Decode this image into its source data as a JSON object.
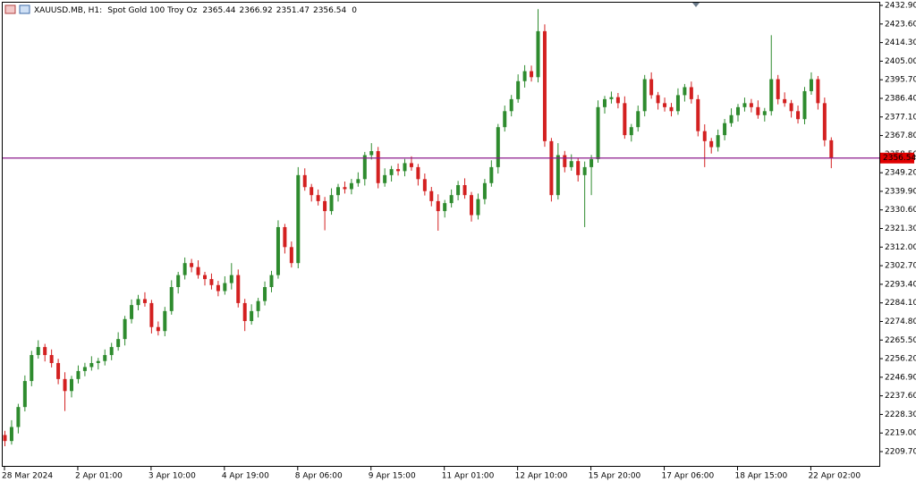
{
  "chart_data": {
    "type": "candlestick",
    "title": "XAUUSD.MB, H1:",
    "subtitle": "Spot Gold 100 Troy Oz",
    "info": "0",
    "up_color": "#2e8b2e",
    "down_color": "#d32020",
    "price_line_color": "#8b1a8b",
    "price_label_color": "#e00000",
    "categories": [
      "28 Mar 2024",
      null,
      null,
      null,
      null,
      null,
      null,
      null,
      null,
      null,
      null,
      "2 Apr 01:00",
      null,
      null,
      null,
      null,
      null,
      null,
      null,
      null,
      null,
      null,
      "3 Apr 10:00",
      null,
      null,
      null,
      null,
      null,
      null,
      null,
      null,
      null,
      null,
      "4 Apr 19:00",
      null,
      null,
      null,
      null,
      null,
      null,
      null,
      null,
      null,
      null,
      "8 Apr 06:00",
      null,
      null,
      null,
      null,
      null,
      null,
      null,
      null,
      null,
      null,
      "9 Apr 15:00",
      null,
      null,
      null,
      null,
      null,
      null,
      null,
      null,
      null,
      null,
      "11 Apr 01:00",
      null,
      null,
      null,
      null,
      null,
      null,
      null,
      null,
      null,
      null,
      "12 Apr 10:00",
      null,
      null,
      null,
      null,
      null,
      null,
      null,
      null,
      null,
      null,
      "15 Apr 20:00",
      null,
      null,
      null,
      null,
      null,
      null,
      null,
      null,
      null,
      null,
      "17 Apr 06:00",
      null,
      null,
      null,
      null,
      null,
      null,
      null,
      null,
      null,
      null,
      "18 Apr 15:00",
      null,
      null,
      null,
      null,
      null,
      null,
      null,
      null,
      null,
      null,
      "22 Apr 02:00",
      null,
      null,
      null
    ],
    "open": [
      2218,
      2215,
      2222,
      2232,
      2245,
      2258,
      2262,
      2258,
      2254,
      2246,
      2240,
      2246,
      2250,
      2252,
      2254,
      2255,
      2258,
      2262,
      2266,
      2276,
      2283,
      2286,
      2284,
      2272,
      2270,
      2280,
      2292,
      2298,
      2304,
      2302,
      2298,
      2296,
      2293,
      2290,
      2294,
      2298,
      2284,
      2275,
      2280,
      2285,
      2292,
      2298,
      2322,
      2312,
      2304,
      2348,
      2342,
      2338,
      2335,
      2330,
      2338,
      2342,
      2341,
      2344,
      2346,
      2358,
      2360,
      2344,
      2348,
      2351,
      2350,
      2354,
      2352,
      2346,
      2340,
      2335,
      2330,
      2334,
      2338,
      2343,
      2338,
      2328,
      2336,
      2344,
      2352,
      2372,
      2380,
      2386,
      2395,
      2400,
      2397,
      2420,
      2365,
      2338,
      2358,
      2352,
      2355,
      2348,
      2352,
      2356,
      2382,
      2386,
      2387,
      2384,
      2368,
      2372,
      2380,
      2396,
      2388,
      2384,
      2382,
      2380,
      2388,
      2392,
      2386,
      2370,
      2365,
      2362,
      2368,
      2374,
      2378,
      2382,
      2384,
      2382,
      2378,
      2380,
      2396,
      2386,
      2384,
      2380,
      2376,
      2390,
      2396,
      2384,
      2365.44
    ],
    "high": [
      2220.1,
      2225.4,
      2233.6,
      2247.8,
      2260.1,
      2265.4,
      2263.6,
      2260.8,
      2256.1,
      2249.4,
      2247.6,
      2252.8,
      2254.1,
      2257.4,
      2256.6,
      2260.8,
      2264.1,
      2269.4,
      2277.6,
      2285.8,
      2288.1,
      2289.4,
      2285.6,
      2274.8,
      2282.1,
      2295.4,
      2299.6,
      2306.8,
      2306.1,
      2305.4,
      2299.6,
      2298.8,
      2295.1,
      2297.4,
      2304,
      2300.8,
      2286.1,
      2283.4,
      2286.6,
      2294.8,
      2300.1,
      2325.4,
      2323.6,
      2314.8,
      2352,
      2351.4,
      2343.6,
      2340.8,
      2337.1,
      2341.4,
      2343.6,
      2344.8,
      2346.1,
      2349.4,
      2359.6,
      2364,
      2362.1,
      2351.4,
      2352.6,
      2353.8,
      2356.1,
      2357.4,
      2353.6,
      2348.8,
      2342.1,
      2338.4,
      2335.6,
      2340.8,
      2345.1,
      2346.4,
      2339.6,
      2338.8,
      2346.1,
      2355.4,
      2373.6,
      2382.8,
      2388.1,
      2398.4,
      2403,
      2402.8,
      2431,
      2423.4,
      2366.6,
      2364,
      2360.1,
      2358.4,
      2356.6,
      2354.8,
      2358.1,
      2385.4,
      2387.6,
      2389.8,
      2389.1,
      2387.4,
      2373.6,
      2382.8,
      2398.1,
      2399.4,
      2389.6,
      2386.8,
      2384.1,
      2391.4,
      2393.6,
      2394.8,
      2388.1,
      2373.4,
      2366.6,
      2370.8,
      2376.1,
      2381.4,
      2383.6,
      2386.8,
      2386.1,
      2385.4,
      2381.6,
      2418,
      2398.1,
      2389.4,
      2385.6,
      2382.8,
      2392.1,
      2399.4,
      2397.6,
      2386.8,
      2366.92
    ],
    "low": [
      2212.4,
      2213.2,
      2218.8,
      2229.8,
      2242.4,
      2256.2,
      2254.8,
      2251.8,
      2243.4,
      2230,
      2236.8,
      2243.8,
      2247.4,
      2250.2,
      2250.8,
      2252.8,
      2255.4,
      2260.2,
      2262.8,
      2273.8,
      2280.4,
      2282.2,
      2268.8,
      2267.8,
      2267.4,
      2278.2,
      2288.8,
      2295.8,
      2299.4,
      2296.2,
      2292.8,
      2290.8,
      2287.4,
      2288.2,
      2290.8,
      2281.8,
      2270,
      2273.2,
      2276.8,
      2282.8,
      2289.4,
      2296.2,
      2308.8,
      2301.8,
      2301.4,
      2340.2,
      2334.8,
      2332.8,
      2320.4,
      2328.2,
      2334.8,
      2338.8,
      2338.4,
      2342.2,
      2342.8,
      2355.8,
      2341.4,
      2342.2,
      2344.8,
      2347.8,
      2347.4,
      2350.2,
      2342.8,
      2337.8,
      2332.4,
      2320.2,
      2326.8,
      2331.8,
      2335.4,
      2336.2,
      2324.8,
      2325.8,
      2333.4,
      2342.2,
      2348.8,
      2369.8,
      2377.4,
      2384.2,
      2391.8,
      2394.8,
      2394.4,
      2362.2,
      2334.8,
      2335.8,
      2349.4,
      2350.2,
      2344.8,
      2322,
      2338,
      2354.2,
      2378.8,
      2383.8,
      2381.4,
      2366.2,
      2364.8,
      2369.8,
      2377.4,
      2386.2,
      2380.8,
      2379.8,
      2377.4,
      2378.2,
      2384.8,
      2383.8,
      2367.4,
      2352,
      2358.8,
      2359.8,
      2365.4,
      2372.2,
      2374.8,
      2379.8,
      2379.4,
      2376.2,
      2374.8,
      2377.8,
      2383.4,
      2382.2,
      2376.8,
      2373.8,
      2373.4,
      2388.2,
      2380.8,
      2362.4,
      2351.47
    ],
    "close": [
      2215,
      2222,
      2232,
      2245,
      2258,
      2262,
      2258,
      2254,
      2246,
      2240,
      2246,
      2250,
      2252,
      2254,
      2255,
      2258,
      2262,
      2266,
      2276,
      2283,
      2286,
      2284,
      2272,
      2270,
      2280,
      2292,
      2298,
      2304,
      2302,
      2298,
      2296,
      2293,
      2290,
      2294,
      2298,
      2284,
      2275,
      2280,
      2285,
      2292,
      2298,
      2322,
      2312,
      2304,
      2348,
      2342,
      2338,
      2335,
      2330,
      2338,
      2342,
      2341,
      2344,
      2346,
      2358,
      2360,
      2344,
      2348,
      2351,
      2350,
      2354,
      2352,
      2346,
      2340,
      2335,
      2330,
      2334,
      2338,
      2343,
      2338,
      2328,
      2336,
      2344,
      2352,
      2372,
      2380,
      2386,
      2395,
      2400,
      2397,
      2420,
      2365,
      2338,
      2358,
      2352,
      2355,
      2348,
      2352,
      2356,
      2382,
      2386,
      2387,
      2384,
      2368,
      2372,
      2380,
      2396,
      2388,
      2384,
      2382,
      2380,
      2388,
      2392,
      2386,
      2370,
      2365,
      2362,
      2368,
      2374,
      2378,
      2382,
      2384,
      2382,
      2378,
      2380,
      2396,
      2386,
      2384,
      2380,
      2376,
      2390,
      2396,
      2384,
      2365.44,
      2356.54
    ],
    "ylim": [
      2202.1,
      2435.6
    ],
    "yticks": [
      {
        "value": 2432.9,
        "label": "2432.90"
      },
      {
        "value": 2423.6,
        "label": "2423.60"
      },
      {
        "value": 2414.3,
        "label": "2414.30"
      },
      {
        "value": 2405,
        "label": "2405.00"
      },
      {
        "value": 2395.7,
        "label": "2395.70"
      },
      {
        "value": 2386.4,
        "label": "2386.40"
      },
      {
        "value": 2377.1,
        "label": "2377.10"
      },
      {
        "value": 2367.8,
        "label": "2367.80"
      },
      {
        "value": 2358.5,
        "label": "2358.50"
      },
      {
        "value": 2349.2,
        "label": "2349.20"
      },
      {
        "value": 2339.9,
        "label": "2339.90"
      },
      {
        "value": 2330.6,
        "label": "2330.60"
      },
      {
        "value": 2321.3,
        "label": "2321.30"
      },
      {
        "value": 2312,
        "label": "2312.00"
      },
      {
        "value": 2302.7,
        "label": "2302.70"
      },
      {
        "value": 2293.4,
        "label": "2293.40"
      },
      {
        "value": 2284.1,
        "label": "2284.10"
      },
      {
        "value": 2274.8,
        "label": "2274.80"
      },
      {
        "value": 2265.5,
        "label": "2265.50"
      },
      {
        "value": 2256.2,
        "label": "2256.20"
      },
      {
        "value": 2246.9,
        "label": "2246.90"
      },
      {
        "value": 2237.6,
        "label": "2237.60"
      },
      {
        "value": 2228.3,
        "label": "2228.30"
      },
      {
        "value": 2219,
        "label": "2219.00"
      },
      {
        "value": 2209.7,
        "label": "2209.70"
      }
    ],
    "grid": false
  }
}
